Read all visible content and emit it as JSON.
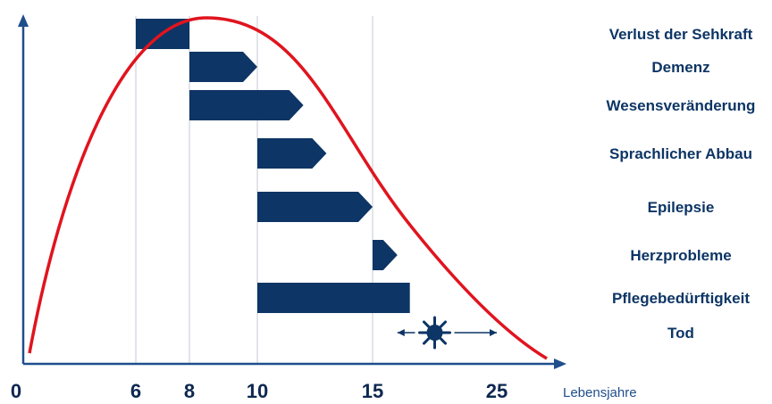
{
  "colors": {
    "bar": "#0d3565",
    "curve": "#e0141e",
    "axis": "#1f4e8c",
    "text": "#0d3565",
    "tick_text": "#0d2750",
    "grid": "#c4cad3",
    "death_marker": "#0d3565"
  },
  "chart_data": {
    "type": "bar",
    "orientation": "horizontal-range",
    "x_axis": {
      "label": "Lebensjahre",
      "ticks": [
        "0",
        "6",
        "8",
        "10",
        "15",
        "25"
      ],
      "scale": "non-linear",
      "grid_at": [
        "6",
        "8",
        "10",
        "15"
      ]
    },
    "y_axis": {
      "label": "",
      "tick_labels": false
    },
    "stages": [
      {
        "label": "Verlust der Sehkraft",
        "start": 6,
        "end": 8,
        "arrow": false
      },
      {
        "label": "Demenz",
        "start": 8,
        "end": 10,
        "arrow": true
      },
      {
        "label": "Wesensveränderung",
        "start": 8,
        "end": 12,
        "arrow": true
      },
      {
        "label": "Sprachlicher Abbau",
        "start": 10,
        "end": 13,
        "arrow": true
      },
      {
        "label": "Epilepsie",
        "start": 10,
        "end": 15,
        "arrow": true
      },
      {
        "label": "Herzprobleme",
        "start": 15,
        "end": 17,
        "arrow": true
      },
      {
        "label": "Pflegebedürftigkeit",
        "start": 10,
        "end": 18,
        "arrow": false
      }
    ],
    "death": {
      "label": "Tod",
      "marker": "sun-icon",
      "center": 20,
      "range": [
        17,
        25
      ]
    },
    "curve": {
      "description_none": "",
      "shape": "rise-and-fall",
      "start": 0,
      "peak": 8.5,
      "end": 30
    },
    "grid": true,
    "legend": "none"
  }
}
